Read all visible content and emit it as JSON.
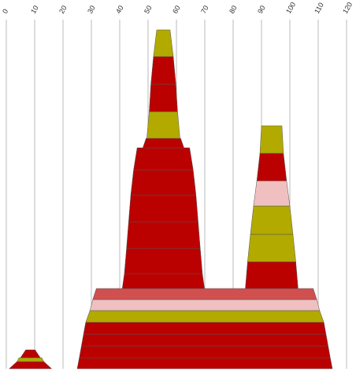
{
  "chart_data": {
    "type": "stacked-pyramid",
    "xlim": [
      0,
      120
    ],
    "xticks": [
      0,
      10,
      20,
      30,
      40,
      50,
      60,
      70,
      80,
      90,
      100,
      110,
      120
    ],
    "grid": true,
    "stacks": [
      {
        "center": 8.5,
        "layers": [
          {
            "values": [
              15,
              9.5
            ],
            "color": "#bb0000"
          },
          {
            "values": [
              9.5,
              8
            ],
            "color": "#b3aa00"
          },
          {
            "values": [
              7,
              3.3
            ],
            "color": "#bb0000"
          }
        ]
      },
      {
        "center": 70,
        "layers": [
          {
            "values": [
              90,
              88.5
            ],
            "color": "#bb0000"
          },
          {
            "values": [
              88.5,
              87
            ],
            "color": "#bb0000"
          },
          {
            "values": [
              87,
              85.5
            ],
            "color": "#bb0000"
          },
          {
            "values": [
              85.5,
              84
            ],
            "color": "#bb0000"
          },
          {
            "values": [
              84,
              81
            ],
            "color": "#b3aa00"
          },
          {
            "values": [
              81,
              79
            ],
            "color": "#f0c0c0"
          },
          {
            "values": [
              79,
              76.5
            ],
            "color": "#d05050"
          }
        ]
      },
      {
        "center": 55.4,
        "layers": [
          {
            "values": [
              29,
              27.5
            ],
            "color": "#bb0000"
          },
          {
            "values": [
              27.5,
              26
            ],
            "color": "#bb0000"
          },
          {
            "values": [
              26,
              24.5
            ],
            "color": "#bb0000"
          },
          {
            "values": [
              24.5,
              23
            ],
            "color": "#bb0000"
          },
          {
            "values": [
              23,
              21
            ],
            "color": "#bb0000"
          },
          {
            "values": [
              21,
              18.5
            ],
            "color": "#bb0000"
          },
          {
            "values": [
              14.5,
              12.2
            ],
            "color": "#bb0000"
          },
          {
            "values": [
              11.7,
              10
            ],
            "color": "#b3aa00"
          },
          {
            "values": [
              10,
              8.8
            ],
            "color": "#bb0000"
          },
          {
            "values": [
              8.8,
              7
            ],
            "color": "#bb0000"
          },
          {
            "values": [
              7,
              4.7
            ],
            "color": "#b3aa00"
          }
        ]
      },
      {
        "center": 93.6,
        "layers": [
          {
            "values": [
              18.6,
              17
            ],
            "color": "#bb0000"
          },
          {
            "values": [
              17,
              15
            ],
            "color": "#b3aa00"
          },
          {
            "values": [
              15,
              12.8
            ],
            "color": "#b3aa00"
          },
          {
            "values": [
              12.8,
              10.5
            ],
            "color": "#f0c0c0"
          },
          {
            "values": [
              10.5,
              8.3
            ],
            "color": "#bb0000"
          },
          {
            "values": [
              8.3,
              7.2
            ],
            "color": "#b3aa00"
          }
        ]
      }
    ]
  }
}
